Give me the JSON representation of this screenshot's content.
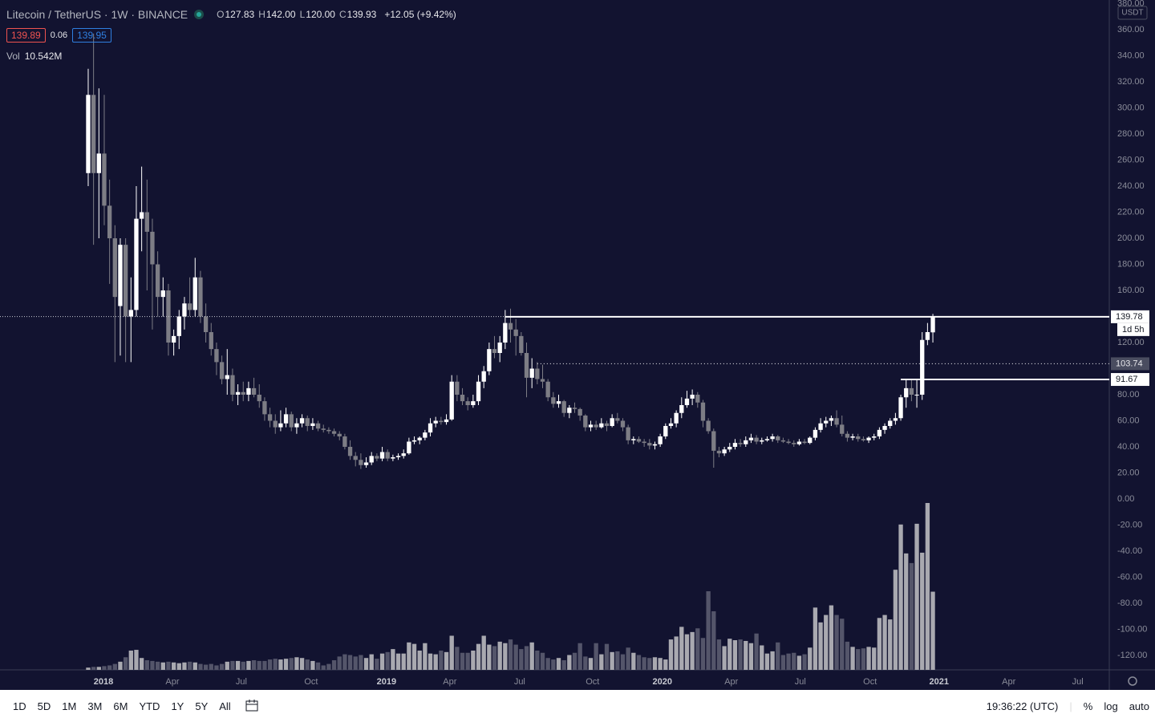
{
  "header": {
    "symbol": "Litecoin / TetherUS · 1W · BINANCE",
    "ohlc": [
      {
        "key": "O",
        "value": "127.83"
      },
      {
        "key": "H",
        "value": "142.00"
      },
      {
        "key": "L",
        "value": "120.00"
      },
      {
        "key": "C",
        "value": "139.93"
      }
    ],
    "change": "+12.05 (+9.42%)",
    "bid": "139.89",
    "spread": "0.06",
    "ask": "139.95",
    "vol_key": "Vol",
    "vol_value": "10.542M",
    "currency": "USDT"
  },
  "chart_data": {
    "type": "candlestick",
    "grid": false,
    "up_color": "#ffffff",
    "down_color": "#7d7d85",
    "volume_up_color": "#a9a9b0",
    "volume_down_color": "#54556a",
    "xlim": [
      -16.5,
      191
    ],
    "ylim": [
      -131.1,
      382.8
    ],
    "yticks": [
      {
        "value": -120,
        "label": "-120.00"
      },
      {
        "value": -100,
        "label": "-100.00"
      },
      {
        "value": -80,
        "label": "-80.00"
      },
      {
        "value": -60,
        "label": "-60.00"
      },
      {
        "value": -40,
        "label": "-40.00"
      },
      {
        "value": -20,
        "label": "-20.00"
      },
      {
        "value": 0,
        "label": "0.00"
      },
      {
        "value": 20,
        "label": "20.00"
      },
      {
        "value": 40,
        "label": "40.00"
      },
      {
        "value": 60,
        "label": "60.00"
      },
      {
        "value": 80,
        "label": "80.00"
      },
      {
        "value": 120,
        "label": "120.00"
      },
      {
        "value": 160,
        "label": "160.00"
      },
      {
        "value": 180,
        "label": "180.00"
      },
      {
        "value": 200,
        "label": "200.00"
      },
      {
        "value": 220,
        "label": "220.00"
      },
      {
        "value": 240,
        "label": "240.00"
      },
      {
        "value": 260,
        "label": "260.00"
      },
      {
        "value": 280,
        "label": "280.00"
      },
      {
        "value": 300,
        "label": "300.00"
      },
      {
        "value": 320,
        "label": "320.00"
      },
      {
        "value": 340,
        "label": "340.00"
      },
      {
        "value": 360,
        "label": "360.00"
      },
      {
        "value": 380,
        "label": "380.00"
      }
    ],
    "xticks": [
      {
        "value": 2.85,
        "label": "2018"
      },
      {
        "value": 15.75,
        "label": "Apr"
      },
      {
        "value": 28.65,
        "label": "Jul"
      },
      {
        "value": 41.7,
        "label": "Oct"
      },
      {
        "value": 55.8,
        "label": "2019"
      },
      {
        "value": 67.65,
        "label": "Apr"
      },
      {
        "value": 80.7,
        "label": "Jul"
      },
      {
        "value": 94.35,
        "label": "Oct"
      },
      {
        "value": 107.4,
        "label": "2020"
      },
      {
        "value": 120.3,
        "label": "Apr"
      },
      {
        "value": 133.2,
        "label": "Jul"
      },
      {
        "value": 146.25,
        "label": "Oct"
      },
      {
        "value": 159.15,
        "label": "2021"
      },
      {
        "value": 172.2,
        "label": "Apr"
      },
      {
        "value": 185.1,
        "label": "Jul"
      }
    ],
    "levels": [
      {
        "value": 139.78,
        "from": 78,
        "style": "solid",
        "box": "#ffffff"
      },
      {
        "value": 103.74,
        "from": 84,
        "style": "dotted",
        "box": "#4a4d60"
      },
      {
        "value": 91.67,
        "from": 152,
        "style": "solid",
        "box": "#ffffff"
      }
    ],
    "countdown": "1d 5h",
    "candles": [
      [
        250,
        330,
        240,
        310
      ],
      [
        310,
        357,
        195,
        250
      ],
      [
        250,
        315,
        200,
        265
      ],
      [
        265,
        310,
        210,
        225
      ],
      [
        225,
        245,
        165,
        200
      ],
      [
        200,
        210,
        105,
        155
      ],
      [
        148,
        200,
        110,
        195
      ],
      [
        195,
        200,
        105,
        140
      ],
      [
        140,
        170,
        105,
        145
      ],
      [
        145,
        240,
        140,
        215
      ],
      [
        215,
        255,
        190,
        220
      ],
      [
        220,
        245,
        160,
        205
      ],
      [
        205,
        215,
        130,
        180
      ],
      [
        180,
        190,
        140,
        155
      ],
      [
        155,
        170,
        140,
        160
      ],
      [
        160,
        165,
        110,
        120
      ],
      [
        120,
        130,
        110,
        125
      ],
      [
        125,
        145,
        115,
        140
      ],
      [
        140,
        155,
        130,
        150
      ],
      [
        150,
        170,
        140,
        145
      ],
      [
        145,
        185,
        140,
        170
      ],
      [
        170,
        175,
        135,
        140
      ],
      [
        140,
        150,
        120,
        128
      ],
      [
        128,
        135,
        110,
        115
      ],
      [
        115,
        120,
        95,
        105
      ],
      [
        105,
        110,
        88,
        92
      ],
      [
        92,
        115,
        80,
        95
      ],
      [
        95,
        100,
        75,
        80
      ],
      [
        80,
        88,
        72,
        82
      ],
      [
        82,
        90,
        75,
        80
      ],
      [
        80,
        90,
        75,
        85
      ],
      [
        85,
        93,
        78,
        80
      ],
      [
        80,
        88,
        70,
        75
      ],
      [
        75,
        78,
        60,
        65
      ],
      [
        65,
        70,
        55,
        60
      ],
      [
        60,
        65,
        50,
        55
      ],
      [
        55,
        68,
        52,
        58
      ],
      [
        58,
        70,
        55,
        65
      ],
      [
        65,
        67,
        52,
        55
      ],
      [
        55,
        62,
        50,
        58
      ],
      [
        58,
        65,
        55,
        62
      ],
      [
        62,
        64,
        52,
        56
      ],
      [
        56,
        62,
        53,
        58
      ],
      [
        58,
        60,
        52,
        54
      ],
      [
        54,
        57,
        51,
        53
      ],
      [
        53,
        55,
        50,
        52
      ],
      [
        52,
        54,
        48,
        50
      ],
      [
        50,
        52,
        45,
        48
      ],
      [
        48,
        50,
        38,
        40
      ],
      [
        40,
        45,
        30,
        33
      ],
      [
        33,
        36,
        25,
        30
      ],
      [
        30,
        35,
        23,
        26
      ],
      [
        26,
        32,
        24,
        28
      ],
      [
        28,
        36,
        26,
        33
      ],
      [
        33,
        35,
        29,
        31
      ],
      [
        31,
        40,
        29,
        36
      ],
      [
        36,
        38,
        29,
        31
      ],
      [
        31,
        34,
        29,
        32
      ],
      [
        32,
        35,
        30,
        33
      ],
      [
        33,
        38,
        31,
        35
      ],
      [
        35,
        47,
        34,
        44
      ],
      [
        44,
        48,
        42,
        45
      ],
      [
        45,
        48,
        42,
        47
      ],
      [
        47,
        53,
        45,
        51
      ],
      [
        51,
        62,
        48,
        58
      ],
      [
        58,
        63,
        55,
        60
      ],
      [
        60,
        63,
        57,
        59
      ],
      [
        59,
        65,
        57,
        61
      ],
      [
        61,
        95,
        60,
        90
      ],
      [
        90,
        95,
        75,
        80
      ],
      [
        80,
        85,
        72,
        75
      ],
      [
        75,
        78,
        68,
        72
      ],
      [
        72,
        80,
        70,
        75
      ],
      [
        75,
        95,
        72,
        90
      ],
      [
        90,
        102,
        85,
        98
      ],
      [
        98,
        120,
        95,
        115
      ],
      [
        115,
        125,
        108,
        112
      ],
      [
        112,
        125,
        105,
        120
      ],
      [
        120,
        145,
        115,
        135
      ],
      [
        135,
        146,
        120,
        130
      ],
      [
        130,
        138,
        110,
        125
      ],
      [
        125,
        128,
        110,
        112
      ],
      [
        112,
        120,
        78,
        93
      ],
      [
        93,
        108,
        85,
        100
      ],
      [
        100,
        105,
        88,
        92
      ],
      [
        92,
        103,
        85,
        90
      ],
      [
        90,
        92,
        75,
        78
      ],
      [
        78,
        82,
        70,
        73
      ],
      [
        73,
        80,
        70,
        75
      ],
      [
        75,
        76,
        63,
        66
      ],
      [
        66,
        72,
        62,
        70
      ],
      [
        70,
        74,
        66,
        69
      ],
      [
        69,
        70,
        60,
        64
      ],
      [
        64,
        65,
        52,
        55
      ],
      [
        55,
        60,
        52,
        57
      ],
      [
        57,
        60,
        53,
        55
      ],
      [
        55,
        62,
        54,
        58
      ],
      [
        58,
        60,
        52,
        56
      ],
      [
        56,
        65,
        55,
        62
      ],
      [
        62,
        66,
        58,
        60
      ],
      [
        60,
        62,
        52,
        55
      ],
      [
        55,
        57,
        42,
        45
      ],
      [
        45,
        48,
        42,
        46
      ],
      [
        46,
        48,
        43,
        44
      ],
      [
        44,
        46,
        40,
        43
      ],
      [
        43,
        46,
        38,
        41
      ],
      [
        41,
        44,
        38,
        42
      ],
      [
        42,
        50,
        40,
        48
      ],
      [
        48,
        58,
        46,
        56
      ],
      [
        56,
        62,
        54,
        58
      ],
      [
        58,
        68,
        55,
        66
      ],
      [
        66,
        78,
        62,
        72
      ],
      [
        72,
        83,
        70,
        77
      ],
      [
        77,
        84,
        72,
        80
      ],
      [
        80,
        82,
        70,
        74
      ],
      [
        74,
        76,
        55,
        60
      ],
      [
        60,
        62,
        50,
        52
      ],
      [
        52,
        54,
        24,
        37
      ],
      [
        37,
        40,
        32,
        35
      ],
      [
        35,
        40,
        33,
        38
      ],
      [
        38,
        43,
        36,
        40
      ],
      [
        40,
        46,
        38,
        43
      ],
      [
        43,
        46,
        40,
        42
      ],
      [
        42,
        48,
        40,
        45
      ],
      [
        45,
        50,
        43,
        47
      ],
      [
        47,
        49,
        42,
        44
      ],
      [
        44,
        47,
        42,
        45
      ],
      [
        45,
        48,
        44,
        46
      ],
      [
        46,
        50,
        44,
        48
      ],
      [
        48,
        49,
        43,
        45
      ],
      [
        45,
        47,
        43,
        44
      ],
      [
        44,
        46,
        42,
        43
      ],
      [
        43,
        45,
        40,
        42
      ],
      [
        42,
        46,
        41,
        44
      ],
      [
        44,
        46,
        42,
        43
      ],
      [
        43,
        48,
        42,
        47
      ],
      [
        47,
        55,
        45,
        53
      ],
      [
        53,
        62,
        51,
        58
      ],
      [
        58,
        63,
        55,
        60
      ],
      [
        60,
        64,
        56,
        62
      ],
      [
        62,
        68,
        55,
        57
      ],
      [
        57,
        64,
        48,
        50
      ],
      [
        50,
        52,
        44,
        47
      ],
      [
        47,
        50,
        45,
        48
      ],
      [
        48,
        50,
        44,
        46
      ],
      [
        46,
        48,
        44,
        45
      ],
      [
        45,
        48,
        43,
        47
      ],
      [
        47,
        50,
        45,
        48
      ],
      [
        48,
        55,
        46,
        53
      ],
      [
        53,
        58,
        50,
        56
      ],
      [
        56,
        62,
        54,
        60
      ],
      [
        60,
        66,
        57,
        62
      ],
      [
        62,
        80,
        60,
        78
      ],
      [
        78,
        92,
        70,
        85
      ],
      [
        85,
        92,
        75,
        80
      ],
      [
        80,
        92,
        70,
        80
      ],
      [
        80,
        128,
        76,
        122
      ],
      [
        122,
        135,
        118,
        128
      ],
      [
        127.83,
        142,
        120,
        139.93
      ]
    ],
    "volume": [
      0.3,
      0.4,
      0.4,
      0.5,
      0.6,
      0.8,
      1.1,
      1.7,
      2.6,
      2.7,
      1.6,
      1.3,
      1.2,
      1.1,
      1.0,
      1.1,
      1.0,
      0.9,
      1.0,
      1.1,
      1.0,
      0.8,
      0.7,
      0.8,
      0.6,
      0.8,
      1.1,
      1.2,
      1.2,
      1.1,
      1.2,
      1.3,
      1.2,
      1.2,
      1.4,
      1.5,
      1.4,
      1.5,
      1.6,
      1.7,
      1.6,
      1.4,
      1.2,
      1.0,
      0.6,
      0.8,
      1.3,
      1.8,
      2.1,
      2.0,
      1.8,
      2.0,
      1.6,
      2.1,
      1.5,
      2.2,
      2.4,
      2.8,
      2.2,
      2.2,
      3.7,
      3.5,
      2.6,
      3.6,
      2.2,
      2.1,
      2.6,
      2.4,
      4.6,
      3.1,
      2.3,
      2.3,
      2.6,
      3.5,
      4.6,
      3.4,
      3.2,
      3.8,
      3.6,
      4.1,
      3.4,
      2.8,
      3.2,
      3.7,
      2.6,
      2.3,
      1.6,
      1.4,
      1.6,
      1.3,
      2.0,
      2.3,
      3.6,
      1.8,
      1.6,
      3.6,
      2.1,
      3.5,
      2.4,
      2.5,
      2.1,
      3.0,
      2.3,
      2.0,
      1.7,
      1.6,
      1.7,
      1.6,
      1.4,
      4.1,
      4.5,
      5.8,
      4.8,
      5.1,
      5.6,
      4.3,
      10.6,
      7.9,
      4.1,
      3.2,
      4.2,
      4.0,
      4.1,
      3.9,
      3.6,
      4.9,
      3.3,
      2.2,
      2.5,
      3.7,
      2.0,
      2.2,
      2.3,
      1.9,
      2.1,
      3.0,
      8.4,
      6.4,
      7.4,
      8.7,
      7.4,
      6.9,
      3.8,
      3.1,
      2.8,
      2.9,
      3.1,
      3.0,
      7.0,
      7.4,
      6.8,
      13.5,
      19.6,
      15.7,
      14.4,
      19.7,
      15.8,
      22.5,
      10.542
    ]
  },
  "toolbar": {
    "ranges": [
      "1D",
      "5D",
      "1M",
      "3M",
      "6M",
      "YTD",
      "1Y",
      "5Y",
      "All"
    ],
    "clock": "19:36:22 (UTC)",
    "options": [
      "%",
      "log",
      "auto"
    ]
  }
}
